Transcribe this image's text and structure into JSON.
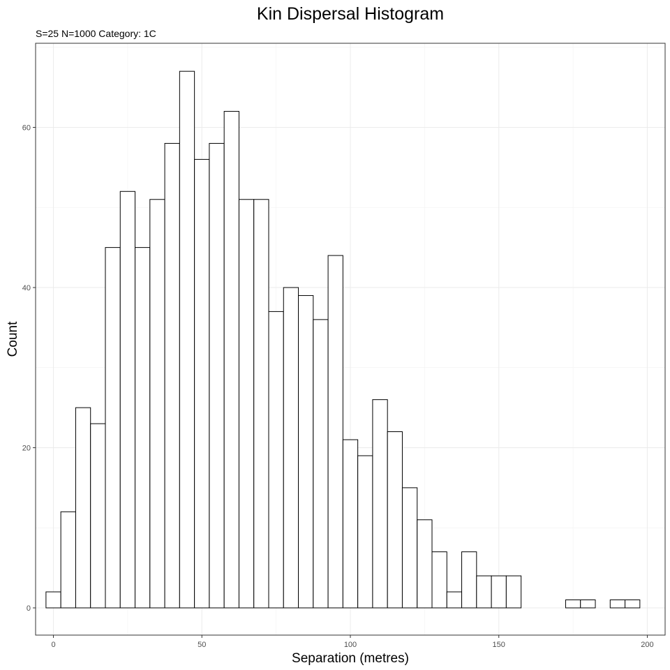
{
  "chart_data": {
    "type": "bar",
    "title": "Kin Dispersal Histogram",
    "subtitle": "S=25 N=1000 Category: 1C",
    "xlabel": "Separation (metres)",
    "ylabel": "Count",
    "xlim": [
      -6,
      206
    ],
    "ylim": [
      -3.4,
      70.5
    ],
    "xticks": [
      0,
      50,
      100,
      150,
      200
    ],
    "yticks": [
      0,
      20,
      40,
      60
    ],
    "bin_width": 5,
    "bin_centers": [
      0,
      5,
      10,
      15,
      20,
      25,
      30,
      35,
      40,
      45,
      50,
      55,
      60,
      65,
      70,
      75,
      80,
      85,
      90,
      95,
      100,
      105,
      110,
      115,
      120,
      125,
      130,
      135,
      140,
      145,
      150,
      155,
      160,
      165,
      170,
      175,
      180,
      185,
      190,
      195
    ],
    "values": [
      2,
      12,
      25,
      23,
      45,
      52,
      45,
      51,
      58,
      67,
      56,
      58,
      62,
      51,
      51,
      37,
      40,
      39,
      36,
      44,
      21,
      19,
      26,
      22,
      15,
      11,
      7,
      2,
      7,
      4,
      4,
      4,
      0,
      0,
      0,
      1,
      1,
      0,
      1,
      1
    ],
    "grid": true,
    "legend": "none"
  }
}
